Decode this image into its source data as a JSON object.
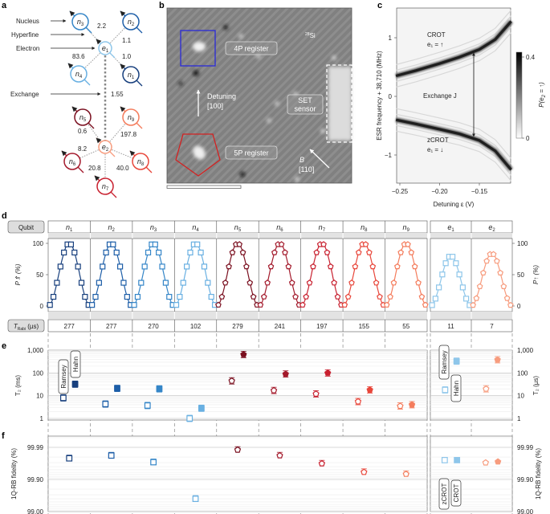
{
  "panel_labels": {
    "a": "a",
    "b": "b",
    "c": "c",
    "d": "d",
    "e": "e",
    "f": "f"
  },
  "colors": {
    "n1": "#173f7d",
    "n2": "#1d5ea8",
    "n3": "#3586c8",
    "n4": "#69b0e2",
    "e1": "#8ec6ea",
    "n5": "#7a0f1f",
    "n6": "#a3192b",
    "n7": "#c8202f",
    "n8": "#e8463a",
    "n9": "#f47c5c",
    "e2": "#f79c7e"
  },
  "panel_a": {
    "annotations": {
      "nucleus": "Nucleus",
      "hyperfine": "Hyperfine",
      "electron": "Electron",
      "exchange": "Exchange"
    },
    "nodes": [
      {
        "id": "e1",
        "base": "e",
        "sub": "1"
      },
      {
        "id": "e2",
        "base": "e",
        "sub": "2"
      },
      {
        "id": "n1",
        "base": "n",
        "sub": "1"
      },
      {
        "id": "n2",
        "base": "n",
        "sub": "2"
      },
      {
        "id": "n3",
        "base": "n",
        "sub": "3"
      },
      {
        "id": "n4",
        "base": "n",
        "sub": "4"
      },
      {
        "id": "n5",
        "base": "n",
        "sub": "5"
      },
      {
        "id": "n6",
        "base": "n",
        "sub": "6"
      },
      {
        "id": "n7",
        "base": "n",
        "sub": "7"
      },
      {
        "id": "n8",
        "base": "n",
        "sub": "8"
      },
      {
        "id": "n9",
        "base": "n",
        "sub": "9"
      }
    ],
    "hyperfine": {
      "n1": "1.0",
      "n2": "1.1",
      "n3": "2.2",
      "n4": "83.6",
      "n5": "0.6",
      "n6": "8.2",
      "n7": "20.8",
      "n8": "40.0",
      "n9": "197.8"
    },
    "exchange_value": "1.55"
  },
  "panel_b": {
    "isotope_sup": "28",
    "isotope": "Si",
    "register_4p": "4P register",
    "register_5p": "5P register",
    "set_line1": "SET",
    "set_line2": "sensor",
    "detuning_line1": "Detuning",
    "detuning_line2": "[100]",
    "field_line1": "B",
    "field_line2": "[110]",
    "box_4p_color": "#2a2ad8",
    "pentagon_5p_color": "#d42020"
  },
  "chart_data": [
    {
      "panel": "c",
      "type": "heatmap",
      "xlabel": "Detuning ε (V)",
      "ylabel": "ESR frequency + 38,710 (MHz)",
      "xticks": [
        "−0.25",
        "−0.20",
        "−0.15"
      ],
      "xtick_values": [
        -0.25,
        -0.2,
        -0.15
      ],
      "yticks": [
        "1",
        "0",
        "−1"
      ],
      "ytick_values": [
        1,
        0,
        -1
      ],
      "xlim": [
        -0.255,
        -0.11
      ],
      "ylim": [
        -1.5,
        1.5
      ],
      "colorbar": {
        "label_base": "P(e",
        "label_sub": "2",
        "label_end": " = ↑)",
        "ticks": [
          "0.4",
          "0"
        ],
        "range": [
          0,
          0.4
        ]
      },
      "annotations": {
        "crot": "CROT",
        "crot_cond": "e₁ = ↑",
        "zcrot": "zCROT",
        "zcrot_cond": "e₁ = ↓",
        "exchange": "Exchange J"
      },
      "series": [
        {
          "name": "CROT",
          "points": [
            [
              -0.255,
              0.35
            ],
            [
              -0.23,
              0.44
            ],
            [
              -0.2,
              0.56
            ],
            [
              -0.175,
              0.67
            ],
            [
              -0.15,
              0.8
            ],
            [
              -0.13,
              0.97
            ],
            [
              -0.11,
              1.28
            ]
          ]
        },
        {
          "name": "zCROT",
          "points": [
            [
              -0.255,
              -0.4
            ],
            [
              -0.23,
              -0.47
            ],
            [
              -0.2,
              -0.56
            ],
            [
              -0.175,
              -0.64
            ],
            [
              -0.15,
              -0.75
            ],
            [
              -0.13,
              -0.93
            ],
            [
              -0.11,
              -1.25
            ]
          ]
        }
      ]
    },
    {
      "panel": "d",
      "type": "line",
      "row_label": "Qubit",
      "qubits": [
        {
          "id": "n1",
          "base": "n",
          "sub": "1"
        },
        {
          "id": "n2",
          "base": "n",
          "sub": "2"
        },
        {
          "id": "n3",
          "base": "n",
          "sub": "3"
        },
        {
          "id": "n4",
          "base": "n",
          "sub": "4"
        },
        {
          "id": "n5",
          "base": "n",
          "sub": "5"
        },
        {
          "id": "n6",
          "base": "n",
          "sub": "6"
        },
        {
          "id": "n7",
          "base": "n",
          "sub": "7"
        },
        {
          "id": "n8",
          "base": "n",
          "sub": "8"
        },
        {
          "id": "n9",
          "base": "n",
          "sub": "9"
        },
        {
          "id": "e1",
          "base": "e",
          "sub": "1"
        },
        {
          "id": "e2",
          "base": "e",
          "sub": "2"
        }
      ],
      "ylabel_left": "P⇑ (%)",
      "ylabel_right": "P↑ (%)",
      "yticks": [
        "0",
        "50",
        "100"
      ],
      "ylim": [
        -8,
        108
      ],
      "rabi_peak_percent": [
        100,
        100,
        100,
        100,
        100,
        100,
        100,
        100,
        100,
        80,
        84
      ],
      "t_rabi_label_base": "T",
      "t_rabi_label_sub": "Rabi",
      "t_rabi_label_unit": " (µs)",
      "t_rabi_us": [
        "277",
        "277",
        "270",
        "102",
        "279",
        "241",
        "197",
        "155",
        "55",
        "11",
        "7"
      ]
    },
    {
      "panel": "e",
      "type": "scatter",
      "ylabel_left": "T₂ (ms)",
      "ylabel_right": "T₂ (µs)",
      "yscale": "log",
      "ylim": [
        1,
        1000
      ],
      "yticks": [
        "1,000",
        "100",
        "10",
        "1"
      ],
      "legend": {
        "ramsey": "Ramsey",
        "hahn": "Hahn"
      },
      "series": [
        {
          "name": "Ramsey",
          "values": [
            8,
            4.3,
            3.7,
            1.0,
            45,
            17,
            12,
            5.5,
            3.5,
            18,
            20
          ]
        },
        {
          "name": "Hahn",
          "values": [
            32,
            21,
            20,
            2.8,
            650,
            90,
            100,
            18,
            4.0,
            330,
            380
          ]
        }
      ]
    },
    {
      "panel": "f",
      "type": "scatter",
      "ylabel": "1Q-RB fidelity (%)",
      "yticks": [
        "99.99",
        "99.90",
        "99.00"
      ],
      "legend": {
        "zcrot": "zCROT",
        "crot": "CROT"
      },
      "nuclear_fidelity": [
        99.978,
        99.982,
        99.971,
        99.6,
        99.988,
        99.982,
        99.968,
        99.941,
        99.932
      ],
      "electron_fidelity": {
        "e1": [
          99.975,
          99.975
        ],
        "e2": [
          99.97,
          99.972
        ]
      }
    }
  ]
}
